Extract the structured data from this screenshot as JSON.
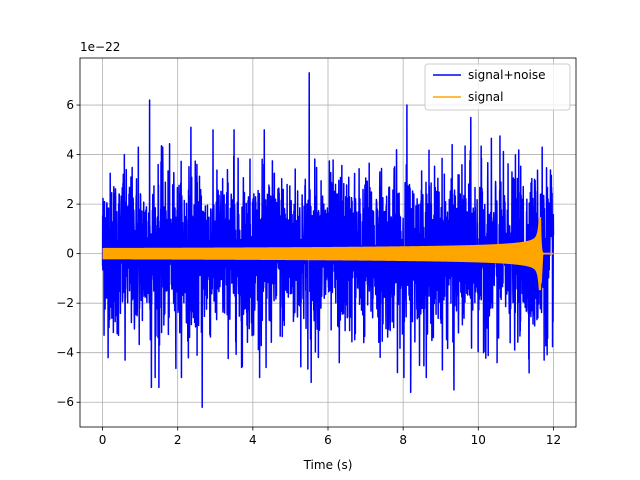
{
  "chart_data": {
    "type": "line",
    "title": "",
    "xlabel": "Time (s)",
    "ylabel": "",
    "y_offset_label": "1e−22",
    "xlim": [
      -0.6,
      12.6
    ],
    "ylim": [
      -7,
      7.9
    ],
    "xticks": [
      0,
      2,
      4,
      6,
      8,
      10,
      12
    ],
    "yticks": [
      -6,
      -4,
      -2,
      0,
      2,
      4,
      6
    ],
    "grid": true,
    "legend_position": "upper right",
    "series": [
      {
        "name": "signal+noise",
        "color": "#0000ff",
        "x_range": [
          0,
          12
        ],
        "noise_std": 1.6,
        "peaks": [
          {
            "x": 0.05,
            "y": 2.1
          },
          {
            "x": 0.3,
            "y": 2.7
          },
          {
            "x": 0.55,
            "y": 3.2
          },
          {
            "x": 0.6,
            "y": -4.3
          },
          {
            "x": 0.95,
            "y": 4.3
          },
          {
            "x": 1.25,
            "y": 6.2
          },
          {
            "x": 1.3,
            "y": -5.4
          },
          {
            "x": 1.5,
            "y": -5.4
          },
          {
            "x": 1.6,
            "y": 4.3
          },
          {
            "x": 2.35,
            "y": 5.1
          },
          {
            "x": 2.65,
            "y": -6.2
          },
          {
            "x": 3.5,
            "y": 5.0
          },
          {
            "x": 3.7,
            "y": -4.6
          },
          {
            "x": 4.35,
            "y": -4.6
          },
          {
            "x": 5.5,
            "y": 7.3
          },
          {
            "x": 5.55,
            "y": -5.2
          },
          {
            "x": 6.3,
            "y": -4.4
          },
          {
            "x": 8.1,
            "y": 6.0
          },
          {
            "x": 8.2,
            "y": -5.6
          },
          {
            "x": 9.35,
            "y": -5.5
          },
          {
            "x": 9.8,
            "y": 5.5
          },
          {
            "x": 10.5,
            "y": -4.4
          },
          {
            "x": 11.7,
            "y": 4.3
          },
          {
            "x": 11.75,
            "y": -4.3
          }
        ]
      },
      {
        "name": "signal",
        "color": "#ffa500",
        "x_range": [
          0,
          12
        ],
        "merger_time": 11.65,
        "start_amplitude": 0.2,
        "peak_amplitude": 1.45
      }
    ]
  }
}
